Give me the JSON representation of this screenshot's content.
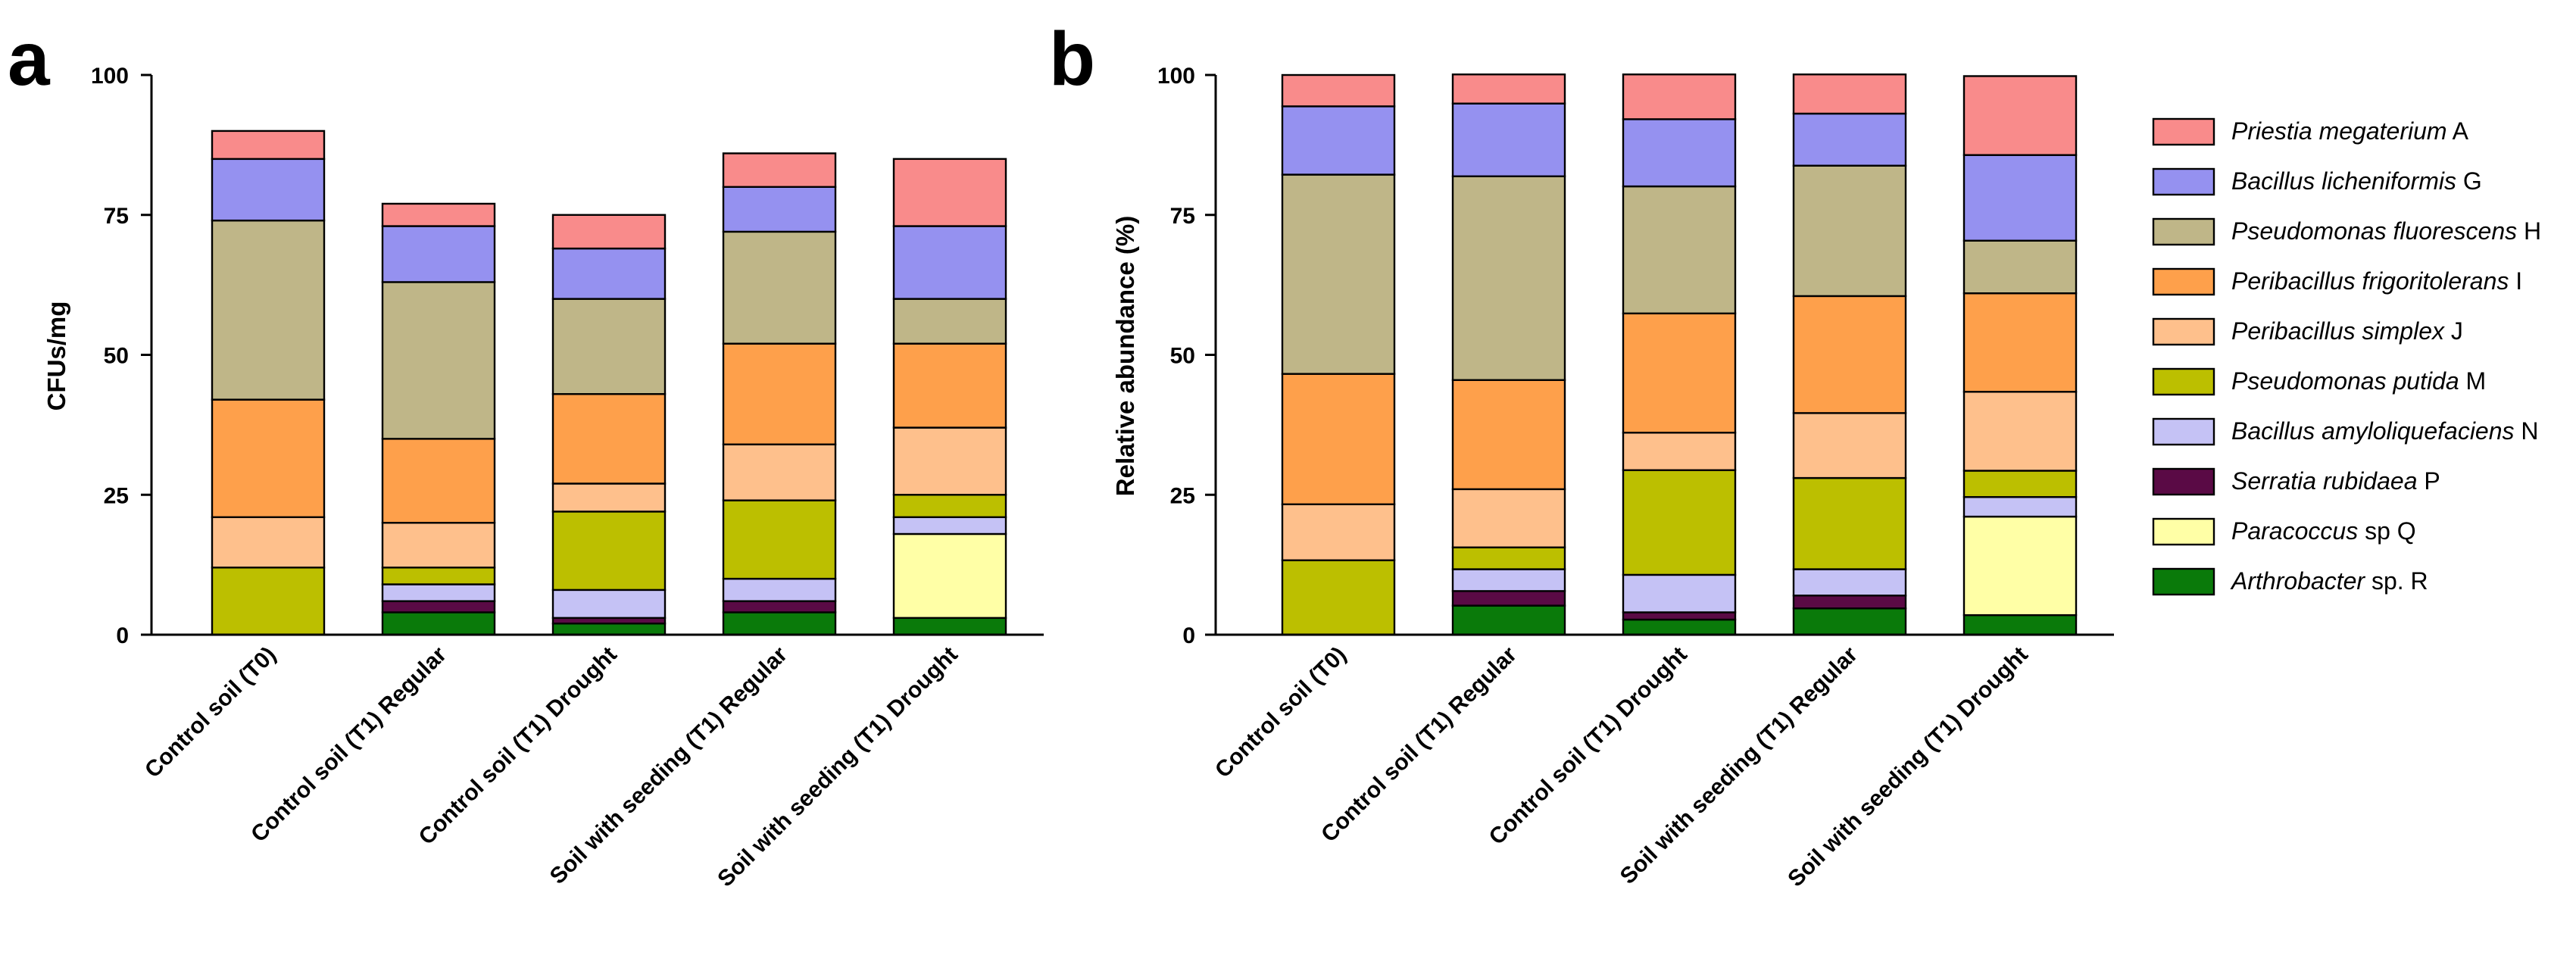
{
  "panels": {
    "a": {
      "letter": "a"
    },
    "b": {
      "letter": "b"
    }
  },
  "chart_data": [
    {
      "type": "bar",
      "stacked": true,
      "panel": "a",
      "title": "",
      "xlabel": "",
      "ylabel": "CFUs/mg",
      "ylim": [
        0,
        100
      ],
      "yticks": [
        0,
        25,
        50,
        75,
        100
      ],
      "grid": false,
      "categories": [
        "Control soil (T0)",
        "Control soil (T1) Regular",
        "Control soil (T1) Drought",
        "Soil with seeding (T1) Regular",
        "Soil with seeding (T1) Drought"
      ],
      "series": [
        {
          "name": "Arthrobacter sp. R",
          "color": "#0a7a0a",
          "values": [
            0,
            4,
            2,
            4,
            3
          ]
        },
        {
          "name": "Paracoccus sp Q",
          "color": "#ffffa6",
          "values": [
            0,
            0,
            0,
            0,
            15
          ]
        },
        {
          "name": "Serratia rubidaea P",
          "color": "#5a0a45",
          "values": [
            0,
            2,
            1,
            2,
            0
          ]
        },
        {
          "name": "Bacillus amyloliquefaciens N",
          "color": "#c5c2f5",
          "values": [
            0,
            3,
            5,
            4,
            3
          ]
        },
        {
          "name": "Pseudomonas putida M",
          "color": "#bcbf00",
          "values": [
            12,
            3,
            14,
            14,
            4
          ]
        },
        {
          "name": "Peribacillus simplex J",
          "color": "#fec08c",
          "values": [
            9,
            8,
            5,
            10,
            12
          ]
        },
        {
          "name": "Peribacillus frigoritolerans I",
          "color": "#fea04b",
          "values": [
            21,
            15,
            16,
            18,
            15
          ]
        },
        {
          "name": "Pseudomonas fluorescens H",
          "color": "#bfb688",
          "values": [
            32,
            28,
            17,
            20,
            8
          ]
        },
        {
          "name": "Bacillus licheniformis G",
          "color": "#9591f0",
          "values": [
            11,
            10,
            9,
            8,
            13
          ]
        },
        {
          "name": "Priestia megaterium A",
          "color": "#f98b8b",
          "values": [
            5,
            4,
            6,
            6,
            12
          ]
        }
      ]
    },
    {
      "type": "bar",
      "stacked": true,
      "panel": "b",
      "title": "",
      "xlabel": "",
      "ylabel": "Relative abundance (%)",
      "ylim": [
        0,
        100
      ],
      "yticks": [
        0,
        25,
        50,
        75,
        100
      ],
      "grid": false,
      "categories": [
        "Control soil (T0)",
        "Control soil (T1) Regular",
        "Control soil (T1) Drought",
        "Soil with seeding (T1) Regular",
        "Soil with seeding (T1) Drought"
      ],
      "series": [
        {
          "name": "Arthrobacter sp. R",
          "color": "#0a7a0a",
          "values": [
            0,
            5.2,
            2.7,
            4.7,
            3.5
          ]
        },
        {
          "name": "Paracoccus sp Q",
          "color": "#ffffa6",
          "values": [
            0,
            0,
            0,
            0,
            17.6
          ]
        },
        {
          "name": "Serratia rubidaea P",
          "color": "#5a0a45",
          "values": [
            0,
            2.6,
            1.3,
            2.3,
            0
          ]
        },
        {
          "name": "Bacillus amyloliquefaciens N",
          "color": "#c5c2f5",
          "values": [
            0,
            3.9,
            6.7,
            4.7,
            3.5
          ]
        },
        {
          "name": "Pseudomonas putida M",
          "color": "#bcbf00",
          "values": [
            13.3,
            3.9,
            18.7,
            16.3,
            4.7
          ]
        },
        {
          "name": "Peribacillus simplex J",
          "color": "#fec08c",
          "values": [
            10.0,
            10.4,
            6.7,
            11.6,
            14.1
          ]
        },
        {
          "name": "Peribacillus frigoritolerans I",
          "color": "#fea04b",
          "values": [
            23.3,
            19.5,
            21.3,
            20.9,
            17.6
          ]
        },
        {
          "name": "Pseudomonas fluorescens H",
          "color": "#bfb688",
          "values": [
            35.6,
            36.4,
            22.7,
            23.3,
            9.4
          ]
        },
        {
          "name": "Bacillus licheniformis G",
          "color": "#9591f0",
          "values": [
            12.2,
            13.0,
            12.0,
            9.3,
            15.3
          ]
        },
        {
          "name": "Priestia megaterium A",
          "color": "#f98b8b",
          "values": [
            5.6,
            5.2,
            8.0,
            7.0,
            14.1
          ]
        }
      ]
    }
  ],
  "legend": {
    "placement": "right",
    "items": [
      {
        "italic": "Priestia megaterium",
        "suffix": " A",
        "color": "#f98b8b"
      },
      {
        "italic": "Bacillus licheniformis",
        "suffix": " G",
        "color": "#9591f0"
      },
      {
        "italic": "Pseudomonas fluorescens",
        "suffix": " H",
        "color": "#bfb688"
      },
      {
        "italic": "Peribacillus frigoritolerans",
        "suffix": " I",
        "color": "#fea04b"
      },
      {
        "italic": "Peribacillus simplex",
        "suffix": " J",
        "color": "#fec08c"
      },
      {
        "italic": "Pseudomonas putida",
        "suffix": " M",
        "color": "#bcbf00"
      },
      {
        "italic": "Bacillus amyloliquefaciens",
        "suffix": " N",
        "color": "#c5c2f5"
      },
      {
        "italic": "Serratia rubidaea",
        "suffix": " P",
        "color": "#5a0a45"
      },
      {
        "italic": "Paracoccus",
        "suffix": " sp Q",
        "color": "#ffffa6"
      },
      {
        "italic": "Arthrobacter",
        "suffix": " sp. R",
        "color": "#0a7a0a"
      }
    ]
  }
}
